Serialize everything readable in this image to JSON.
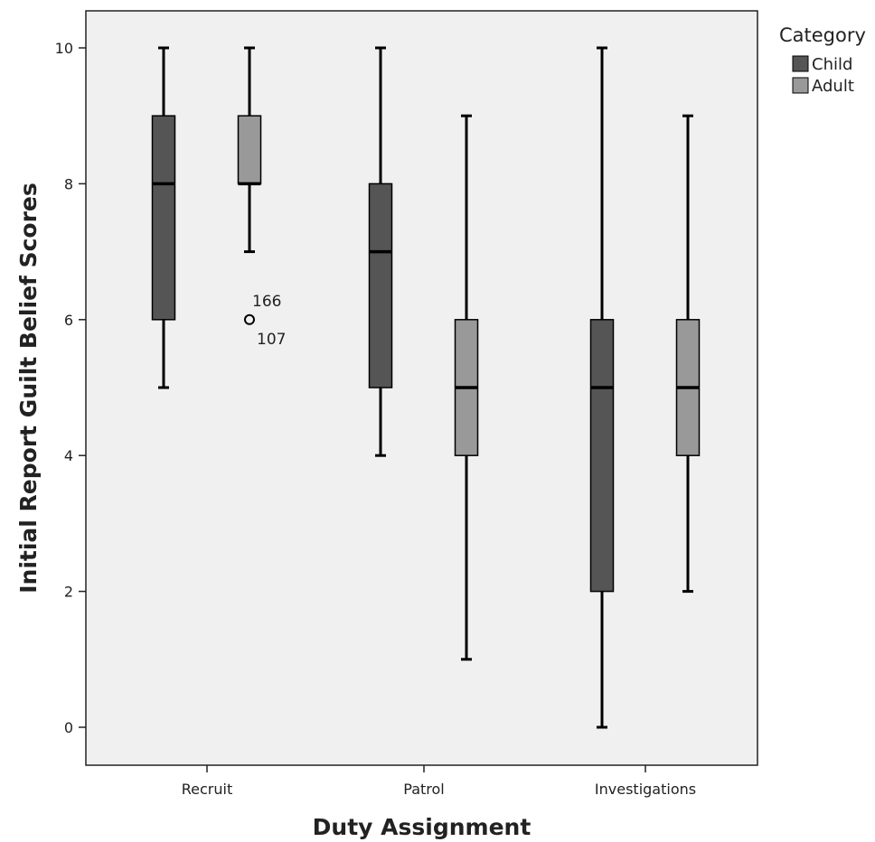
{
  "chart_data": {
    "type": "boxplot",
    "xlabel": "Duty Assignment",
    "ylabel": "Initial Report Guilt Belief Scores",
    "ylim": [
      0,
      10
    ],
    "yticks": [
      0,
      2,
      4,
      6,
      8,
      10
    ],
    "categories": [
      "Recruit",
      "Patrol",
      "Investigations"
    ],
    "legend": {
      "title": "Category",
      "position": "right",
      "entries": [
        {
          "name": "Child",
          "color": "#555555"
        },
        {
          "name": "Adult",
          "color": "#999999"
        }
      ]
    },
    "grid": false,
    "plot_background": "#f0f0f0",
    "series": [
      {
        "name": "Child",
        "color": "#555555",
        "boxes": [
          {
            "category": "Recruit",
            "min": 5,
            "q1": 6,
            "median": 8,
            "q3": 9,
            "max": 10
          },
          {
            "category": "Patrol",
            "min": 4,
            "q1": 5,
            "median": 7,
            "q3": 8,
            "max": 10
          },
          {
            "category": "Investigations",
            "min": 0,
            "q1": 2,
            "median": 5,
            "q3": 6,
            "max": 10
          }
        ]
      },
      {
        "name": "Adult",
        "color": "#999999",
        "boxes": [
          {
            "category": "Recruit",
            "min": 7,
            "q1": 8,
            "median": 8,
            "q3": 9,
            "max": 10,
            "outliers": [
              {
                "value": 6,
                "labels": [
                  "166",
                  "107"
                ]
              }
            ]
          },
          {
            "category": "Patrol",
            "min": 1,
            "q1": 4,
            "median": 5,
            "q3": 6,
            "max": 9
          },
          {
            "category": "Investigations",
            "min": 2,
            "q1": 4,
            "median": 5,
            "q3": 6,
            "max": 9
          }
        ]
      }
    ]
  }
}
